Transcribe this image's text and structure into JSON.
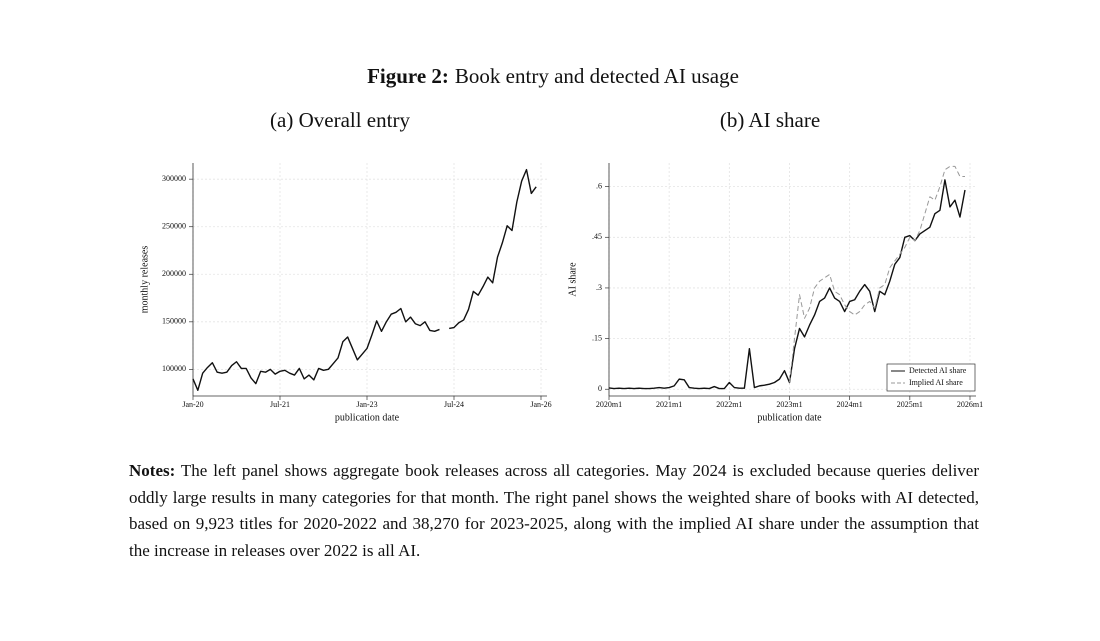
{
  "figure": {
    "label": "Figure 2:",
    "title": "Book entry and detected AI usage"
  },
  "notes": {
    "label": "Notes:",
    "text": "The left panel shows aggregate book releases across all categories. May 2024 is excluded because queries deliver oddly large results in many categories for that month. The right panel shows the weighted share of books with AI detected, based on 9,923 titles for 2020-2022 and 38,270 for 2023-2025, along with the implied AI share under the assumption that the increase in releases over 2022 is all AI."
  },
  "chart_data": [
    {
      "type": "line",
      "title": "(a) Overall entry",
      "xlabel": "publication date",
      "ylabel": "monthly releases",
      "color": "#111111",
      "grid": true,
      "x": [
        "2020-01",
        "2020-02",
        "2020-03",
        "2020-04",
        "2020-05",
        "2020-06",
        "2020-07",
        "2020-08",
        "2020-09",
        "2020-10",
        "2020-11",
        "2020-12",
        "2021-01",
        "2021-02",
        "2021-03",
        "2021-04",
        "2021-05",
        "2021-06",
        "2021-07",
        "2021-08",
        "2021-09",
        "2021-10",
        "2021-11",
        "2021-12",
        "2022-01",
        "2022-02",
        "2022-03",
        "2022-04",
        "2022-05",
        "2022-06",
        "2022-07",
        "2022-08",
        "2022-09",
        "2022-10",
        "2022-11",
        "2022-12",
        "2023-01",
        "2023-02",
        "2023-03",
        "2023-04",
        "2023-05",
        "2023-06",
        "2023-07",
        "2023-08",
        "2023-09",
        "2023-10",
        "2023-11",
        "2023-12",
        "2024-01",
        "2024-02",
        "2024-03",
        "2024-04",
        "2024-05",
        "2024-06",
        "2024-07",
        "2024-08",
        "2024-09",
        "2024-10",
        "2024-11",
        "2024-12",
        "2025-01",
        "2025-02",
        "2025-03",
        "2025-04",
        "2025-05",
        "2025-06",
        "2025-07",
        "2025-08",
        "2025-09",
        "2025-10",
        "2025-11",
        "2025-12"
      ],
      "values": [
        90000,
        78000,
        96000,
        102000,
        107000,
        97000,
        96000,
        97000,
        104000,
        108000,
        101000,
        101000,
        91000,
        85000,
        98000,
        97000,
        100000,
        95000,
        98000,
        99000,
        96000,
        94000,
        101000,
        90000,
        94000,
        89000,
        101000,
        99000,
        100000,
        106000,
        112000,
        129000,
        134000,
        122000,
        110000,
        116000,
        122000,
        136000,
        151000,
        140000,
        150000,
        158000,
        160000,
        164000,
        150000,
        155000,
        148000,
        146000,
        150000,
        141000,
        140000,
        142000,
        null,
        143000,
        144000,
        149000,
        152000,
        163000,
        182000,
        178000,
        187000,
        197000,
        191000,
        218000,
        233000,
        251000,
        246000,
        276000,
        298000,
        310000,
        285000,
        292000
      ],
      "xlim": [
        "2020-01",
        "2026-01"
      ],
      "xticks": [
        {
          "value": "2020-01",
          "label": "Jan-20"
        },
        {
          "value": "2021-07",
          "label": "Jul-21"
        },
        {
          "value": "2023-01",
          "label": "Jan-23"
        },
        {
          "value": "2024-07",
          "label": "Jul-24"
        },
        {
          "value": "2026-01",
          "label": "Jan-26"
        }
      ],
      "ylim": [
        72000,
        317000
      ],
      "yticks": [
        100000,
        150000,
        200000,
        250000,
        300000
      ]
    },
    {
      "type": "line",
      "title": "(b) AI share",
      "xlabel": "publication date",
      "ylabel": "AI share",
      "grid": true,
      "legend": "lower right",
      "x": [
        "2020m1",
        "2020m2",
        "2020m3",
        "2020m4",
        "2020m5",
        "2020m6",
        "2020m7",
        "2020m8",
        "2020m9",
        "2020m10",
        "2020m11",
        "2020m12",
        "2021m1",
        "2021m2",
        "2021m3",
        "2021m4",
        "2021m5",
        "2021m6",
        "2021m7",
        "2021m8",
        "2021m9",
        "2021m10",
        "2021m11",
        "2021m12",
        "2022m1",
        "2022m2",
        "2022m3",
        "2022m4",
        "2022m5",
        "2022m6",
        "2022m7",
        "2022m8",
        "2022m9",
        "2022m10",
        "2022m11",
        "2022m12",
        "2023m1",
        "2023m2",
        "2023m3",
        "2023m4",
        "2023m5",
        "2023m6",
        "2023m7",
        "2023m8",
        "2023m9",
        "2023m10",
        "2023m11",
        "2023m12",
        "2024m1",
        "2024m2",
        "2024m3",
        "2024m4",
        "2024m5",
        "2024m6",
        "2024m7",
        "2024m8",
        "2024m9",
        "2024m10",
        "2024m11",
        "2024m12",
        "2025m1",
        "2025m2",
        "2025m3",
        "2025m4",
        "2025m5",
        "2025m6",
        "2025m7",
        "2025m8",
        "2025m9",
        "2025m10",
        "2025m11",
        "2025m12"
      ],
      "series": [
        {
          "name": "Detected AI share",
          "color": "#111111",
          "style": "solid",
          "values": [
            0.004,
            0.002,
            0.003,
            0.002,
            0.003,
            0.002,
            0.003,
            0.002,
            0.002,
            0.003,
            0.005,
            0.003,
            0.005,
            0.01,
            0.03,
            0.028,
            0.005,
            0.003,
            0.002,
            0.003,
            0.002,
            0.008,
            0.002,
            0.002,
            0.02,
            0.005,
            0.003,
            0.003,
            0.12,
            0.005,
            0.01,
            0.012,
            0.015,
            0.02,
            0.03,
            0.055,
            0.02,
            0.12,
            0.18,
            0.155,
            0.19,
            0.22,
            0.26,
            0.27,
            0.3,
            0.27,
            0.26,
            0.23,
            0.26,
            0.265,
            0.29,
            0.31,
            0.29,
            0.23,
            0.29,
            0.28,
            0.32,
            0.37,
            0.39,
            0.45,
            0.455,
            0.44,
            0.46,
            0.47,
            0.48,
            0.52,
            0.53,
            0.62,
            0.54,
            0.56,
            0.51,
            0.59
          ]
        },
        {
          "name": "Implied AI share",
          "color": "#999999",
          "style": "dashed",
          "values": [
            null,
            null,
            null,
            null,
            null,
            null,
            null,
            null,
            null,
            null,
            null,
            null,
            null,
            null,
            null,
            null,
            null,
            null,
            null,
            null,
            null,
            null,
            null,
            null,
            null,
            null,
            null,
            null,
            null,
            null,
            null,
            null,
            null,
            null,
            null,
            null,
            0.02,
            0.15,
            0.28,
            0.21,
            0.24,
            0.3,
            0.32,
            0.33,
            0.34,
            0.29,
            0.28,
            0.25,
            0.23,
            0.22,
            0.23,
            0.25,
            0.26,
            0.24,
            0.3,
            0.31,
            0.36,
            0.38,
            0.4,
            0.42,
            0.45,
            0.44,
            0.47,
            0.52,
            0.57,
            0.56,
            0.6,
            0.65,
            0.66,
            0.66,
            0.63,
            0.63
          ]
        }
      ],
      "xlim": [
        "2020m1",
        "2026m1"
      ],
      "xticks": [
        "2020m1",
        "2021m1",
        "2022m1",
        "2023m1",
        "2024m1",
        "2025m1",
        "2026m1"
      ],
      "ylim": [
        -0.02,
        0.67
      ],
      "yticks": [
        0,
        {
          "value": 0.15,
          "label": ".15"
        },
        {
          "value": 0.3,
          "label": ".3"
        },
        {
          "value": 0.45,
          "label": ".45"
        },
        {
          "value": 0.6,
          "label": ".6"
        }
      ]
    }
  ]
}
